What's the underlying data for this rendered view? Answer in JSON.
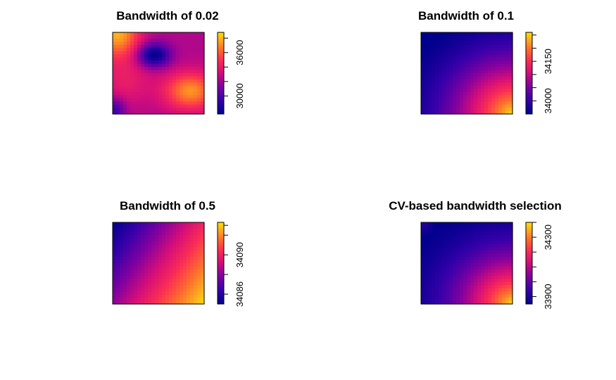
{
  "chart_data": [
    {
      "type": "heatmap",
      "title": "Bandwidth of 0.02",
      "colormap": "plasma",
      "colorbar": {
        "range": [
          27500,
          38800
        ],
        "ticks": [
          30000,
          32000,
          34000,
          36000,
          38000
        ],
        "labels": [
          "30000",
          "",
          "",
          "36000",
          ""
        ]
      },
      "surface": {
        "kind": "bumps",
        "base": 32500,
        "bumps": [
          {
            "x": 0.45,
            "y": 0.72,
            "amp": -5200,
            "sx": 0.12,
            "sy": 0.1
          },
          {
            "x": 0.85,
            "y": 0.28,
            "amp": 4800,
            "sx": 0.2,
            "sy": 0.16
          },
          {
            "x": 0.05,
            "y": 1.0,
            "amp": 5500,
            "sx": 0.17,
            "sy": 0.22
          },
          {
            "x": 0.02,
            "y": 0.05,
            "amp": -3000,
            "sx": 0.08,
            "sy": 0.1
          },
          {
            "x": 0.15,
            "y": 0.4,
            "amp": 1500,
            "sx": 0.2,
            "sy": 0.2
          }
        ]
      }
    },
    {
      "type": "heatmap",
      "title": "Bandwidth of 0.1",
      "colormap": "plasma",
      "colorbar": {
        "range": [
          33950,
          34260
        ],
        "ticks": [
          34000,
          34050,
          34100,
          34150,
          34200,
          34250
        ],
        "labels": [
          "34000",
          "",
          "",
          "34150",
          "",
          ""
        ]
      },
      "surface": {
        "kind": "radial",
        "origin": [
          1.0,
          0.0
        ],
        "low": 33950,
        "high": 34260,
        "reach": 1.3,
        "power": 1.6
      }
    },
    {
      "type": "heatmap",
      "title": "Bandwidth of 0.5",
      "colormap": "plasma",
      "colorbar": {
        "range": [
          34085.0,
          34093.3
        ],
        "ticks": [
          34086,
          34088,
          34090,
          34092,
          34093
        ],
        "labels": [
          "34086",
          "",
          "34090",
          "",
          ""
        ]
      },
      "surface": {
        "kind": "linear",
        "wx": 0.62,
        "wy": 0.38,
        "low": 34085.0,
        "high": 34093.3,
        "power": 1.0
      }
    },
    {
      "type": "heatmap",
      "title": "CV-based bandwidth selection",
      "colormap": "plasma",
      "colorbar": {
        "range": [
          33850,
          34400
        ],
        "ticks": [
          33900,
          34000,
          34100,
          34200,
          34300,
          34400
        ],
        "labels": [
          "33900",
          "",
          "",
          "",
          "34300",
          ""
        ]
      },
      "surface": {
        "kind": "radial",
        "origin": [
          1.0,
          0.0
        ],
        "low": 33850,
        "high": 34400,
        "reach": 1.35,
        "power": 1.9,
        "extra": {
          "x": 0.03,
          "y": 0.97,
          "amp": 60,
          "s": 0.06
        }
      }
    }
  ]
}
